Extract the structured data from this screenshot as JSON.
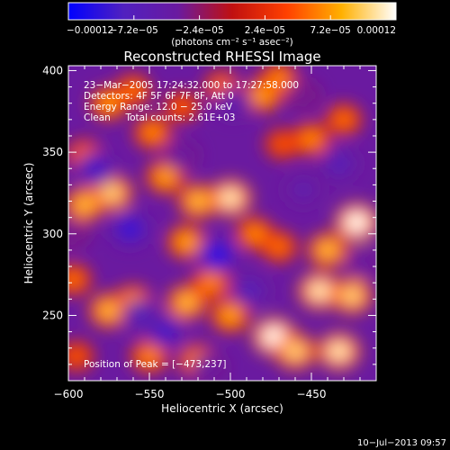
{
  "chart_data": {
    "type": "heatmap",
    "title": "Reconstructed RHESSI Image",
    "xlabel": "Heliocentric X (arcsec)",
    "ylabel": "Heliocentric Y (arcsec)",
    "xlim": [
      -600,
      -410
    ],
    "ylim": [
      210,
      403
    ],
    "xticks": [
      -600,
      -550,
      -500,
      -450
    ],
    "xtick_labels": [
      "−600",
      "−550",
      "−500",
      "−450"
    ],
    "yticks": [
      250,
      300,
      350,
      400
    ],
    "ytick_labels": [
      "250",
      "300",
      "350",
      "400"
    ],
    "colorbar": {
      "range": [
        -0.00012,
        0.00012
      ],
      "ticks": [
        -0.00012,
        -7.2e-05,
        -2.4e-05,
        2.4e-05,
        7.2e-05,
        0.00012
      ],
      "tick_labels": [
        "−0.00012",
        "−7.2e−05",
        "−2.4e−05",
        "2.4e−05",
        "7.2e−05",
        "0.00012"
      ],
      "label": "(photons cm⁻² s⁻¹ asec⁻²)",
      "colors": [
        "#0000ff",
        "#5020c0",
        "#6a1aa0",
        "#c01010",
        "#ff4000",
        "#ffb000",
        "#ffffff"
      ]
    },
    "annotations": {
      "time_range": "23−Mar−2005 17:24:32.000 to 17:27:58.000",
      "detectors": "Detectors: 4F 5F 6F 7F 8F, Att 0",
      "energy": "Energy Range: 12.0 − 25.0 keV",
      "method": "Clean     Total counts: 2.61E+03",
      "peak": "Position of Peak = [−473,237]"
    },
    "blobs": [
      {
        "x": -575,
        "y": 380,
        "v": 7.5e-05
      },
      {
        "x": -560,
        "y": 388,
        "v": 6e-05
      },
      {
        "x": -548,
        "y": 362,
        "v": 7e-05
      },
      {
        "x": -530,
        "y": 378,
        "v": 5e-05
      },
      {
        "x": -505,
        "y": 390,
        "v": 6e-05
      },
      {
        "x": -480,
        "y": 385,
        "v": 8e-05
      },
      {
        "x": -470,
        "y": 395,
        "v": 7e-05
      },
      {
        "x": -468,
        "y": 355,
        "v": 5e-05
      },
      {
        "x": -450,
        "y": 358,
        "v": 7e-05
      },
      {
        "x": -430,
        "y": 370,
        "v": 6e-05
      },
      {
        "x": -590,
        "y": 348,
        "v": 6e-05
      },
      {
        "x": -590,
        "y": 318,
        "v": 9e-05
      },
      {
        "x": -573,
        "y": 325,
        "v": 0.0001
      },
      {
        "x": -540,
        "y": 335,
        "v": 8e-05
      },
      {
        "x": -520,
        "y": 320,
        "v": 9e-05
      },
      {
        "x": -500,
        "y": 322,
        "v": 0.00011
      },
      {
        "x": -527,
        "y": 295,
        "v": 8e-05
      },
      {
        "x": -485,
        "y": 300,
        "v": 7e-05
      },
      {
        "x": -470,
        "y": 292,
        "v": 6e-05
      },
      {
        "x": -422,
        "y": 307,
        "v": 0.00012
      },
      {
        "x": -440,
        "y": 290,
        "v": 9e-05
      },
      {
        "x": -445,
        "y": 265,
        "v": 0.00011
      },
      {
        "x": -425,
        "y": 262,
        "v": 0.0001
      },
      {
        "x": -597,
        "y": 272,
        "v": 6e-05
      },
      {
        "x": -575,
        "y": 253,
        "v": 9e-05
      },
      {
        "x": -560,
        "y": 258,
        "v": 8e-05
      },
      {
        "x": -527,
        "y": 258,
        "v": 9e-05
      },
      {
        "x": -512,
        "y": 270,
        "v": 7e-05
      },
      {
        "x": -500,
        "y": 250,
        "v": 8e-05
      },
      {
        "x": -473,
        "y": 237,
        "v": 0.00012
      },
      {
        "x": -460,
        "y": 228,
        "v": 0.0001
      },
      {
        "x": -433,
        "y": 228,
        "v": 0.00011
      },
      {
        "x": -550,
        "y": 225,
        "v": 7e-05
      },
      {
        "x": -520,
        "y": 222,
        "v": 8e-05
      },
      {
        "x": -595,
        "y": 225,
        "v": 5e-05
      },
      {
        "x": -583,
        "y": 340,
        "v": -9e-05
      },
      {
        "x": -562,
        "y": 303,
        "v": -0.0001
      },
      {
        "x": -555,
        "y": 250,
        "v": -8e-05
      },
      {
        "x": -530,
        "y": 348,
        "v": -6e-05
      },
      {
        "x": -508,
        "y": 287,
        "v": -0.00011
      },
      {
        "x": -498,
        "y": 380,
        "v": -7e-05
      },
      {
        "x": -488,
        "y": 265,
        "v": -8e-05
      },
      {
        "x": -455,
        "y": 327,
        "v": -7e-05
      },
      {
        "x": -433,
        "y": 343,
        "v": -8e-05
      },
      {
        "x": -418,
        "y": 282,
        "v": -6e-05
      },
      {
        "x": -540,
        "y": 240,
        "v": -9e-05
      },
      {
        "x": -513,
        "y": 218,
        "v": -6e-05
      },
      {
        "x": -598,
        "y": 300,
        "v": -5e-05
      },
      {
        "x": -455,
        "y": 385,
        "v": -5e-05
      }
    ]
  },
  "footer": {
    "timestamp": "10−Jul−2013 09:57"
  }
}
